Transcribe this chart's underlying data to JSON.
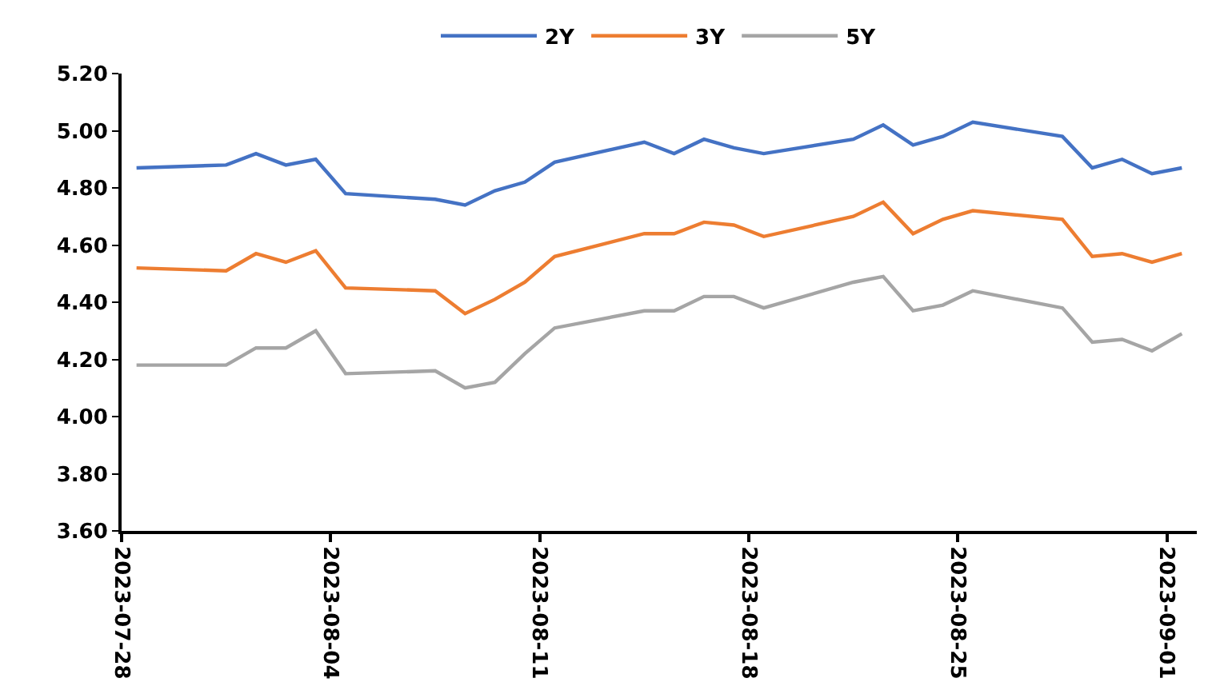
{
  "chart_data": {
    "type": "line",
    "x": [
      "2023-07-28T12:00",
      "2023-07-31T12:00",
      "2023-08-01T12:00",
      "2023-08-02T12:00",
      "2023-08-03T12:00",
      "2023-08-04T12:00",
      "2023-08-07T12:00",
      "2023-08-08T12:00",
      "2023-08-09T12:00",
      "2023-08-10T12:00",
      "2023-08-11T12:00",
      "2023-08-14T12:00",
      "2023-08-15T12:00",
      "2023-08-16T12:00",
      "2023-08-17T12:00",
      "2023-08-18T12:00",
      "2023-08-21T12:00",
      "2023-08-22T12:00",
      "2023-08-23T12:00",
      "2023-08-24T12:00",
      "2023-08-25T12:00",
      "2023-08-28T12:00",
      "2023-08-29T12:00",
      "2023-08-30T12:00",
      "2023-08-31T12:00",
      "2023-09-01T12:00"
    ],
    "series": [
      {
        "name": "2Y",
        "color": "#4472c4",
        "values": [
          4.87,
          4.88,
          4.92,
          4.88,
          4.9,
          4.78,
          4.76,
          4.74,
          4.79,
          4.82,
          4.89,
          4.96,
          4.92,
          4.97,
          4.94,
          4.92,
          4.97,
          5.02,
          4.95,
          4.98,
          5.03,
          4.98,
          4.87,
          4.9,
          4.85,
          4.87
        ]
      },
      {
        "name": "3Y",
        "color": "#ed7d31",
        "values": [
          4.52,
          4.51,
          4.57,
          4.54,
          4.58,
          4.45,
          4.44,
          4.36,
          4.41,
          4.47,
          4.56,
          4.64,
          4.64,
          4.68,
          4.67,
          4.63,
          4.7,
          4.75,
          4.64,
          4.69,
          4.72,
          4.69,
          4.56,
          4.57,
          4.54,
          4.57
        ]
      },
      {
        "name": "5Y",
        "color": "#a5a5a5",
        "values": [
          4.18,
          4.18,
          4.24,
          4.24,
          4.3,
          4.15,
          4.16,
          4.1,
          4.12,
          4.22,
          4.31,
          4.37,
          4.37,
          4.42,
          4.42,
          4.38,
          4.47,
          4.49,
          4.37,
          4.39,
          4.44,
          4.38,
          4.26,
          4.27,
          4.23,
          4.29
        ]
      }
    ],
    "xlim": [
      "2023-07-28",
      "2023-09-02"
    ],
    "xticks": [
      {
        "value": "2023-07-28",
        "label": "2023-07-28"
      },
      {
        "value": "2023-08-04",
        "label": "2023-08-04"
      },
      {
        "value": "2023-08-11",
        "label": "2023-08-11"
      },
      {
        "value": "2023-08-18",
        "label": "2023-08-18"
      },
      {
        "value": "2023-08-25",
        "label": "2023-08-25"
      },
      {
        "value": "2023-09-01",
        "label": "2023-09-01"
      }
    ],
    "ylim": [
      3.6,
      5.2
    ],
    "yticks": [
      {
        "value": 3.6,
        "label": "3.60"
      },
      {
        "value": 3.8,
        "label": "3.80"
      },
      {
        "value": 4.0,
        "label": "4.00"
      },
      {
        "value": 4.2,
        "label": "4.20"
      },
      {
        "value": 4.4,
        "label": "4.40"
      },
      {
        "value": 4.6,
        "label": "4.60"
      },
      {
        "value": 4.8,
        "label": "4.80"
      },
      {
        "value": 5.0,
        "label": "5.00"
      },
      {
        "value": 5.2,
        "label": "5.20"
      }
    ],
    "legend": "top",
    "marker": "none",
    "line_style": "solid"
  }
}
